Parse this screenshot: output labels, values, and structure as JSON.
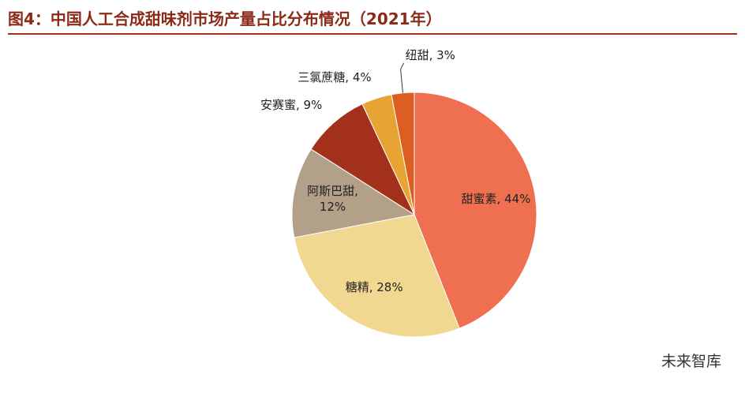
{
  "chart_data": {
    "type": "pie",
    "title": "图4：中国人工合成甜味剂市场产量占比分布情况（2021年）",
    "values": [
      44,
      28,
      12,
      9,
      4,
      3
    ],
    "value_labels": [
      "甜蜜素, 44%",
      "糖精, 28%",
      "阿斯巴甜, 12%",
      "安赛蜜, 9%",
      "三氯蔗糖, 4%",
      "纽甜, 3%"
    ],
    "colors": [
      "#ee7050",
      "#f0d890",
      "#b3a088",
      "#a3301a",
      "#e8a433",
      "#dd5e22"
    ]
  },
  "watermark": "未来智库"
}
